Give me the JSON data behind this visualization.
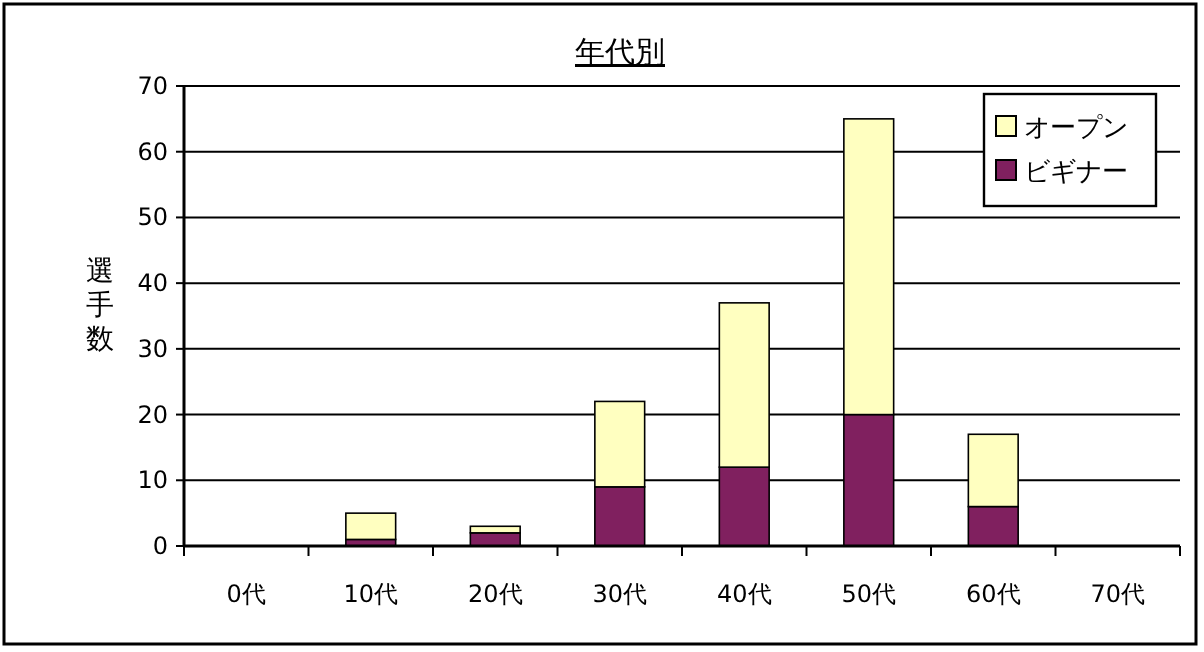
{
  "chart_data": {
    "type": "bar",
    "stacked": true,
    "title": "年代別",
    "ylabel": "選手数",
    "categories": [
      "0代",
      "10代",
      "20代",
      "30代",
      "40代",
      "50代",
      "60代",
      "70代"
    ],
    "series": [
      {
        "name": "ビギナー",
        "color": "#80205f",
        "values": [
          0,
          1,
          2,
          9,
          12,
          20,
          6,
          0
        ]
      },
      {
        "name": "オープン",
        "color": "#ffffc0",
        "values": [
          0,
          4,
          1,
          13,
          25,
          45,
          11,
          0
        ]
      }
    ],
    "ylim": [
      0,
      70
    ],
    "yticks": [
      0,
      10,
      20,
      30,
      40,
      50,
      60,
      70
    ],
    "grid": "y",
    "legend": "top right"
  }
}
